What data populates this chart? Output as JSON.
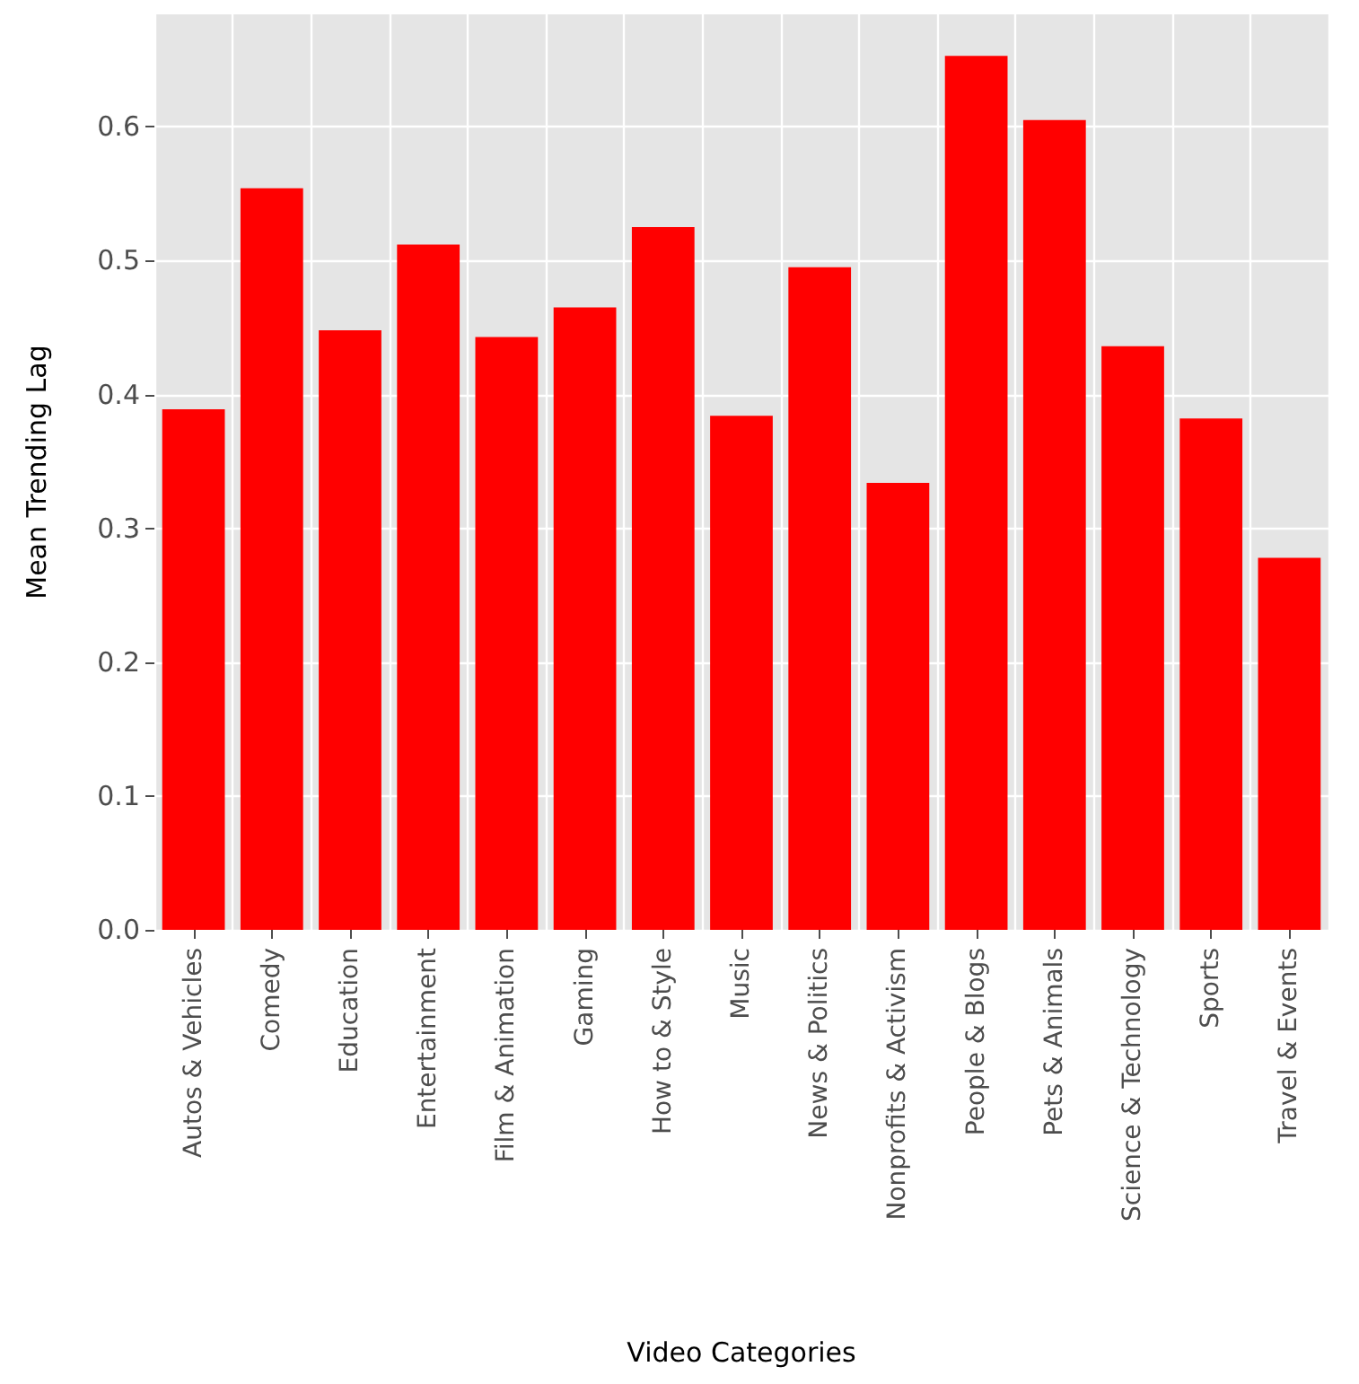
{
  "chart_data": {
    "type": "bar",
    "xlabel": "Video Categories",
    "ylabel": "Mean Trending Lag",
    "categories": [
      "Autos & Vehicles",
      "Comedy",
      "Education",
      "Entertainment",
      "Film & Animation",
      "Gaming",
      "How to & Style",
      "Music",
      "News & Politics",
      "Nonprofits & Activism",
      "People & Blogs",
      "Pets & Animals",
      "Science & Technology",
      "Sports",
      "Travel & Events"
    ],
    "values": [
      0.389,
      0.554,
      0.448,
      0.512,
      0.443,
      0.465,
      0.525,
      0.384,
      0.495,
      0.334,
      0.653,
      0.605,
      0.436,
      0.382,
      0.278
    ],
    "color": "#ff0000",
    "ylim": [
      0,
      0.684
    ],
    "yticks": [
      {
        "value": 0,
        "label": "0.0"
      },
      0.1,
      0.2,
      0.3,
      0.4,
      0.5,
      0.6
    ],
    "grid": true
  }
}
